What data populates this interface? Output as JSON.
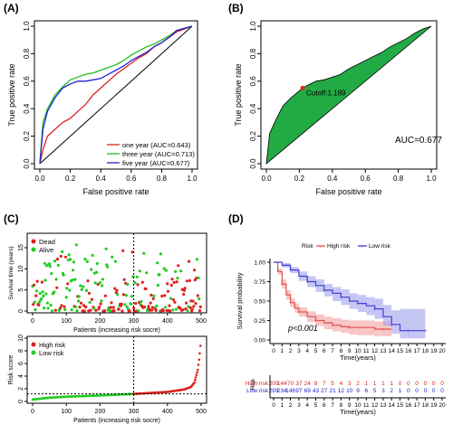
{
  "chart_data": [
    {
      "panel": "(A)",
      "type": "line",
      "xlabel": "False positive rate",
      "ylabel": "True positive rate",
      "xlim": [
        0,
        1
      ],
      "ylim": [
        0,
        1
      ],
      "xticks": [
        "0.0",
        "0.2",
        "0.4",
        "0.6",
        "0.8",
        "1.0"
      ],
      "yticks": [
        "0.0",
        "0.2",
        "0.4",
        "0.6",
        "0.8",
        "1.0"
      ],
      "diagonal": true,
      "legend_position": "bottom-right",
      "series": [
        {
          "name": "one year (AUC=0.643)",
          "color": "#dd2222",
          "x": [
            0,
            0.02,
            0.05,
            0.1,
            0.15,
            0.2,
            0.25,
            0.3,
            0.35,
            0.4,
            0.45,
            0.5,
            0.55,
            0.6,
            0.65,
            0.7,
            0.75,
            0.8,
            0.85,
            0.9,
            1
          ],
          "y": [
            0,
            0.1,
            0.2,
            0.25,
            0.3,
            0.33,
            0.38,
            0.43,
            0.5,
            0.55,
            0.6,
            0.65,
            0.69,
            0.73,
            0.77,
            0.8,
            0.85,
            0.88,
            0.92,
            0.96,
            1
          ]
        },
        {
          "name": "three year (AUC=0.713)",
          "color": "#22bb22",
          "x": [
            0,
            0.02,
            0.05,
            0.1,
            0.15,
            0.2,
            0.25,
            0.3,
            0.35,
            0.4,
            0.45,
            0.5,
            0.55,
            0.6,
            0.65,
            0.7,
            0.75,
            0.8,
            0.85,
            0.9,
            1
          ],
          "y": [
            0,
            0.3,
            0.4,
            0.5,
            0.56,
            0.61,
            0.63,
            0.65,
            0.66,
            0.68,
            0.7,
            0.72,
            0.75,
            0.79,
            0.82,
            0.85,
            0.87,
            0.9,
            0.93,
            0.97,
            1
          ]
        },
        {
          "name": "five year (AUC=0.677)",
          "color": "#2222cc",
          "x": [
            0,
            0.02,
            0.05,
            0.1,
            0.15,
            0.2,
            0.25,
            0.3,
            0.35,
            0.4,
            0.45,
            0.5,
            0.55,
            0.6,
            0.65,
            0.7,
            0.75,
            0.8,
            0.85,
            0.9,
            1
          ],
          "y": [
            0,
            0.25,
            0.38,
            0.48,
            0.55,
            0.58,
            0.6,
            0.6,
            0.61,
            0.62,
            0.65,
            0.68,
            0.71,
            0.75,
            0.78,
            0.81,
            0.85,
            0.88,
            0.92,
            0.97,
            1
          ]
        }
      ]
    },
    {
      "panel": "(B)",
      "type": "area",
      "xlabel": "False positive rate",
      "ylabel": "True positive rate",
      "xlim": [
        0,
        1
      ],
      "ylim": [
        0,
        1
      ],
      "xticks": [
        "0.0",
        "0.2",
        "0.4",
        "0.6",
        "0.8",
        "1.0"
      ],
      "yticks": [
        "0.0",
        "0.2",
        "0.4",
        "0.6",
        "0.8",
        "1.0"
      ],
      "fill_color": "#22aa44",
      "cutoff_label": "Cutoff:1.189",
      "cutoff_point": {
        "x": 0.22,
        "y": 0.55
      },
      "auc_label": "AUC=0.677",
      "x": [
        0,
        0.02,
        0.05,
        0.1,
        0.15,
        0.2,
        0.22,
        0.25,
        0.3,
        0.35,
        0.4,
        0.45,
        0.5,
        0.55,
        0.6,
        0.65,
        0.7,
        0.75,
        0.8,
        0.85,
        0.9,
        0.95,
        1
      ],
      "y": [
        0,
        0.22,
        0.3,
        0.42,
        0.48,
        0.53,
        0.55,
        0.57,
        0.6,
        0.61,
        0.63,
        0.65,
        0.69,
        0.72,
        0.75,
        0.78,
        0.81,
        0.85,
        0.88,
        0.91,
        0.95,
        0.98,
        1
      ]
    },
    {
      "panel": "(C)",
      "type": "scatter",
      "top": {
        "ylabel": "Survival time (years)",
        "ylim": [
          0,
          18
        ],
        "yticks": [
          "0",
          "5",
          "10",
          "15"
        ],
        "legend": [
          {
            "name": "Dead",
            "color": "#dd2222"
          },
          {
            "name": "Alive",
            "color": "#22cc22"
          }
        ],
        "cutoff_patient": 300
      },
      "bottom": {
        "xlabel": "Patients (increasing risk socre)",
        "ylabel": "Risk score",
        "ylim": [
          0,
          10
        ],
        "yticks": [
          "0",
          "2",
          "4",
          "6",
          "8",
          "10"
        ],
        "xticks": [
          "0",
          "100",
          "200",
          "300",
          "400",
          "500"
        ],
        "cutoff_patient": 300,
        "cutoff_score": 1.189,
        "legend": [
          {
            "name": "High risk",
            "color": "#dd2222"
          },
          {
            "name": "Low risk",
            "color": "#22cc22"
          }
        ],
        "n_patients": 500,
        "score_profile": {
          "patient": [
            0,
            50,
            100,
            200,
            300,
            400,
            450,
            470,
            480,
            490,
            495,
            500
          ],
          "score": [
            0.3,
            0.6,
            0.75,
            0.95,
            1.19,
            1.5,
            1.9,
            2.3,
            3.0,
            5.0,
            7.0,
            10.0
          ]
        }
      }
    },
    {
      "panel": "(D)",
      "type": "line",
      "legend_title": "Risk",
      "legend": [
        {
          "name": "High risk",
          "color": "#e05050"
        },
        {
          "name": "Low risk",
          "color": "#4040d0"
        }
      ],
      "xlabel": "Time(years)",
      "ylabel": "Survival probability",
      "xlim": [
        0,
        20
      ],
      "ylim": [
        0,
        1
      ],
      "xticks": [
        "0",
        "1",
        "2",
        "3",
        "4",
        "5",
        "6",
        "7",
        "8",
        "9",
        "10",
        "11",
        "12",
        "13",
        "14",
        "15",
        "16",
        "17",
        "18",
        "19",
        "20"
      ],
      "yticks": [
        "0.00",
        "0.25",
        "0.50",
        "0.75",
        "1.00"
      ],
      "pvalue": "p<0.001",
      "series": [
        {
          "name": "High risk",
          "color": "#e05050",
          "ci_color": "#f4a0a0",
          "x": [
            0,
            0.5,
            1,
            1.5,
            2,
            2.5,
            3,
            4,
            5,
            6,
            7,
            8,
            9,
            10,
            11,
            12,
            13,
            14
          ],
          "y": [
            1,
            0.88,
            0.72,
            0.58,
            0.48,
            0.41,
            0.36,
            0.3,
            0.25,
            0.22,
            0.19,
            0.17,
            0.16,
            0.16,
            0.16,
            0.14,
            0.14,
            0.14
          ],
          "lo": [
            1,
            0.84,
            0.66,
            0.52,
            0.42,
            0.35,
            0.3,
            0.23,
            0.18,
            0.14,
            0.11,
            0.09,
            0.07,
            0.06,
            0.06,
            0.05,
            0.05,
            0.05
          ],
          "hi": [
            1,
            0.92,
            0.78,
            0.64,
            0.54,
            0.47,
            0.42,
            0.37,
            0.33,
            0.3,
            0.28,
            0.26,
            0.25,
            0.25,
            0.25,
            0.24,
            0.24,
            0.24
          ]
        },
        {
          "name": "Low risk",
          "color": "#4040d0",
          "ci_color": "#a0a0ee",
          "x": [
            0,
            1,
            2,
            3,
            4,
            5,
            6,
            7,
            8,
            9,
            10,
            11,
            12,
            13,
            14,
            15,
            16,
            17,
            18
          ],
          "y": [
            1,
            0.96,
            0.9,
            0.82,
            0.75,
            0.7,
            0.64,
            0.6,
            0.55,
            0.5,
            0.47,
            0.44,
            0.4,
            0.3,
            0.2,
            0.12,
            0.12,
            0.12,
            0.12
          ],
          "lo": [
            1,
            0.93,
            0.86,
            0.76,
            0.68,
            0.62,
            0.56,
            0.5,
            0.45,
            0.4,
            0.36,
            0.32,
            0.27,
            0.18,
            0.08,
            0.02,
            0.02,
            0.02,
            0.02
          ],
          "hi": [
            1,
            0.99,
            0.94,
            0.88,
            0.82,
            0.78,
            0.72,
            0.68,
            0.65,
            0.6,
            0.58,
            0.55,
            0.53,
            0.45,
            0.38,
            0.4,
            0.4,
            0.4,
            0.4
          ]
        }
      ],
      "risk_table": {
        "title": "Risk",
        "rows": [
          {
            "name": "High risk",
            "color": "#dd2222",
            "counts": [
              "200",
              "144",
              "70",
              "37",
              "24",
              "9",
              "7",
              "5",
              "4",
              "3",
              "2",
              "1",
              "1",
              "1",
              "1",
              "0",
              "0",
              "0",
              "0",
              "0",
              "0"
            ]
          },
          {
            "name": "Low risk",
            "color": "#2222cc",
            "counts": [
              "299",
              "234",
              "146",
              "97",
              "69",
              "43",
              "27",
              "21",
              "12",
              "10",
              "9",
              "6",
              "5",
              "3",
              "2",
              "1",
              "0",
              "0",
              "0",
              "0",
              "0"
            ]
          }
        ],
        "xlabel": "Time(years)"
      }
    }
  ],
  "panel_labels": [
    "(A)",
    "(B)",
    "(C)",
    "(D)"
  ]
}
